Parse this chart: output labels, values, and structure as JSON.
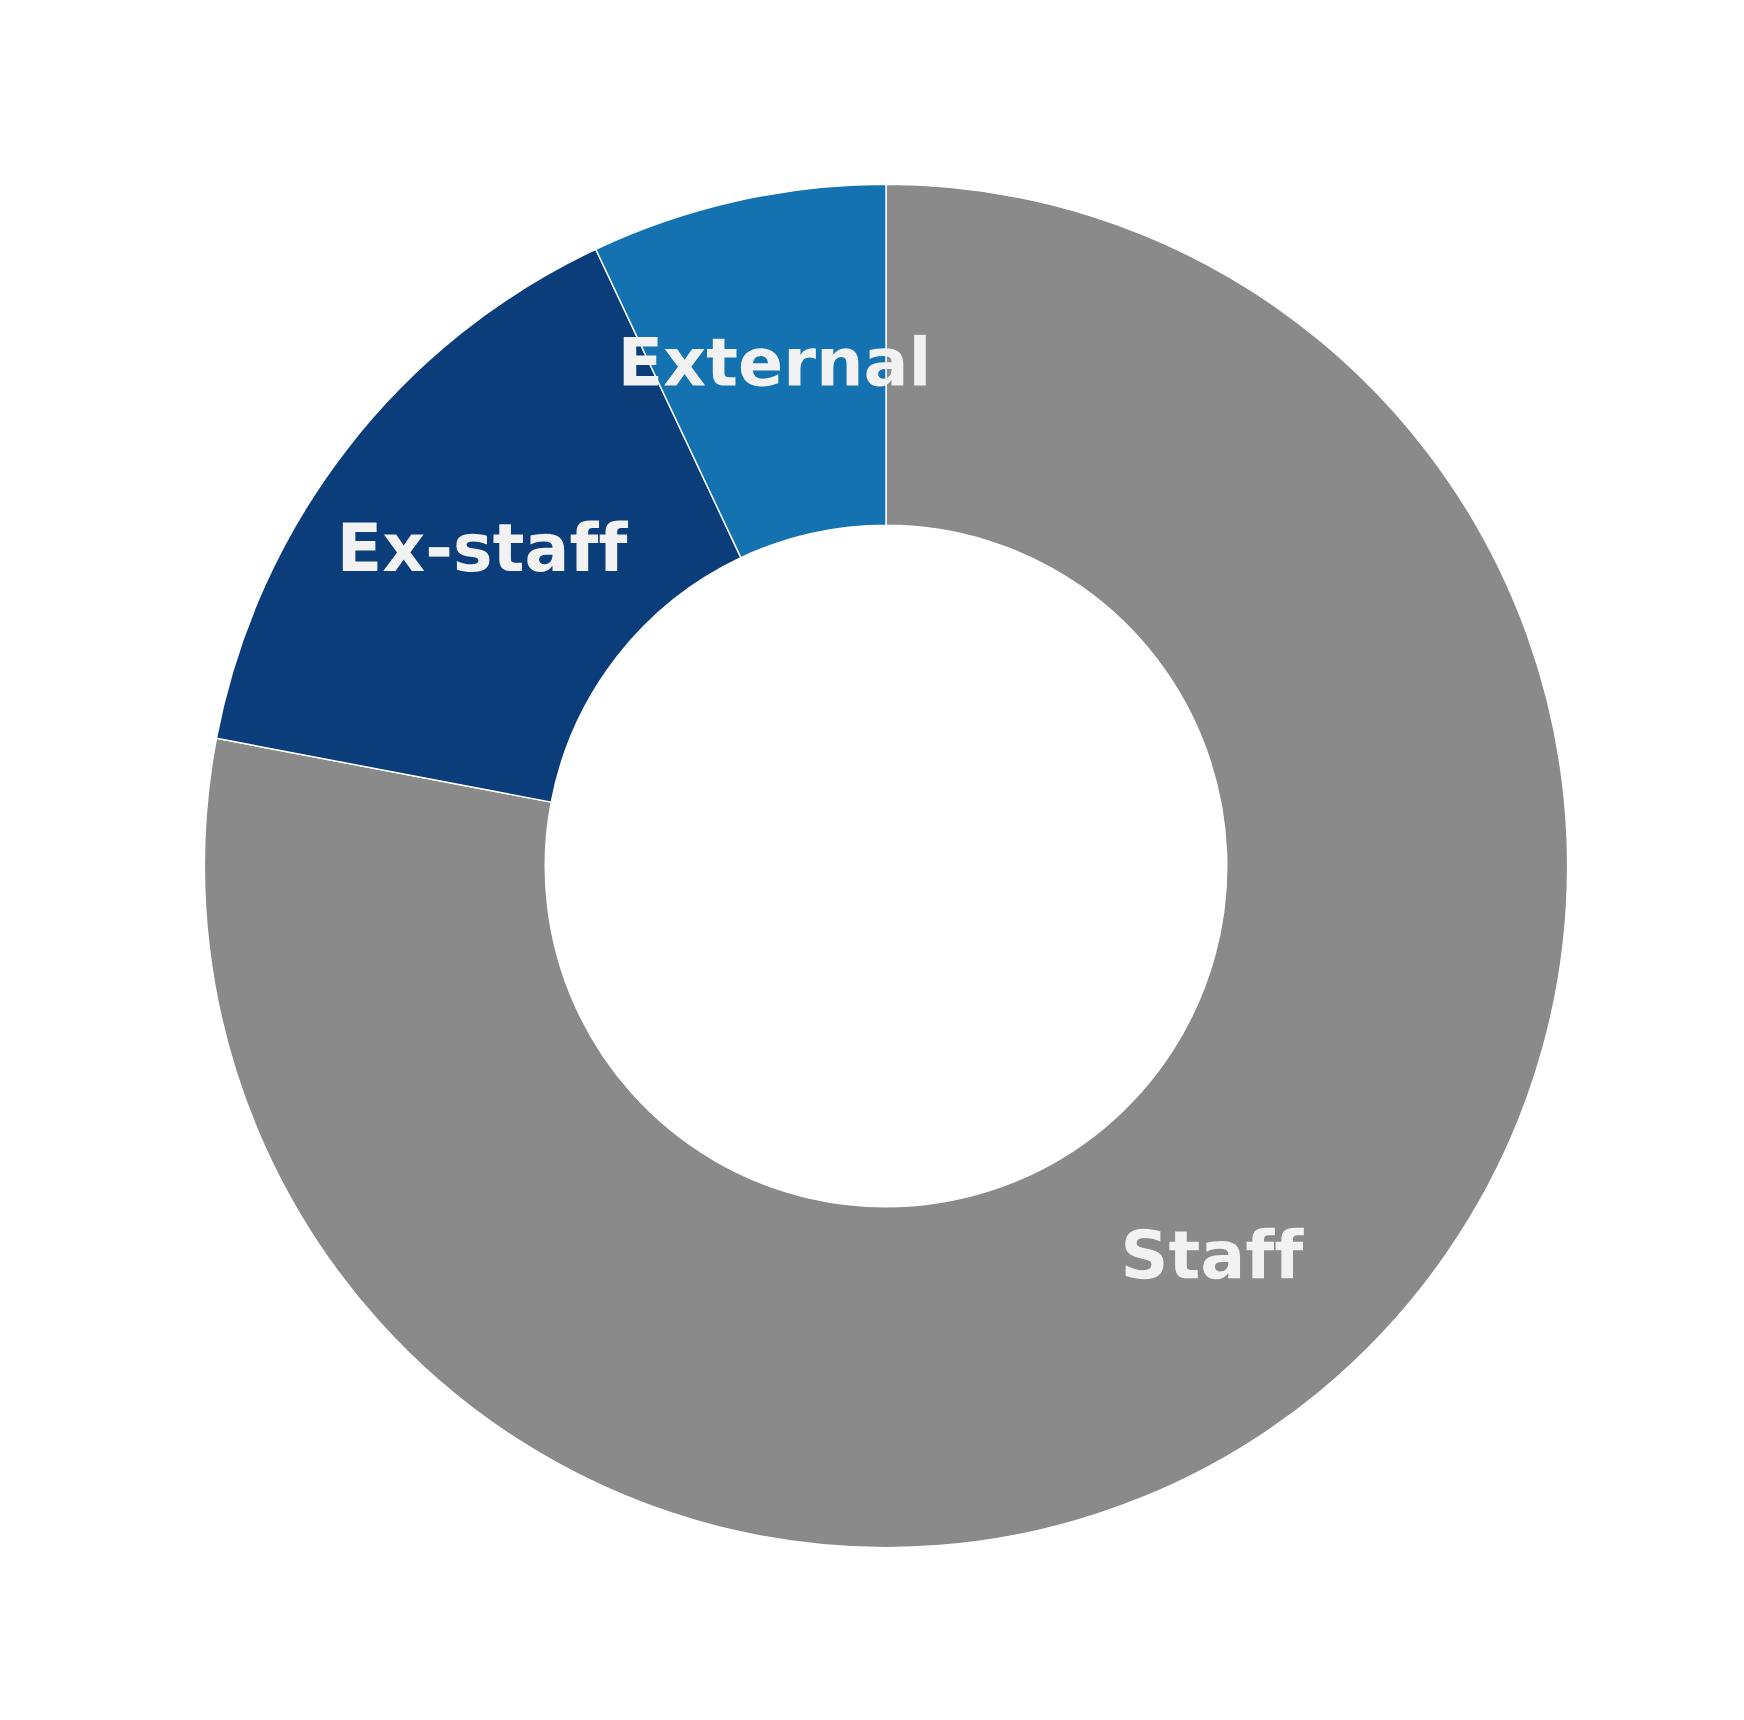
{
  "chart_data": {
    "type": "donut",
    "categories": [
      "Staff",
      "Ex-staff",
      "External"
    ],
    "values": [
      78,
      15,
      7
    ],
    "colors": [
      "#8a8a8a",
      "#0b3d7a",
      "#1472b0"
    ]
  }
}
